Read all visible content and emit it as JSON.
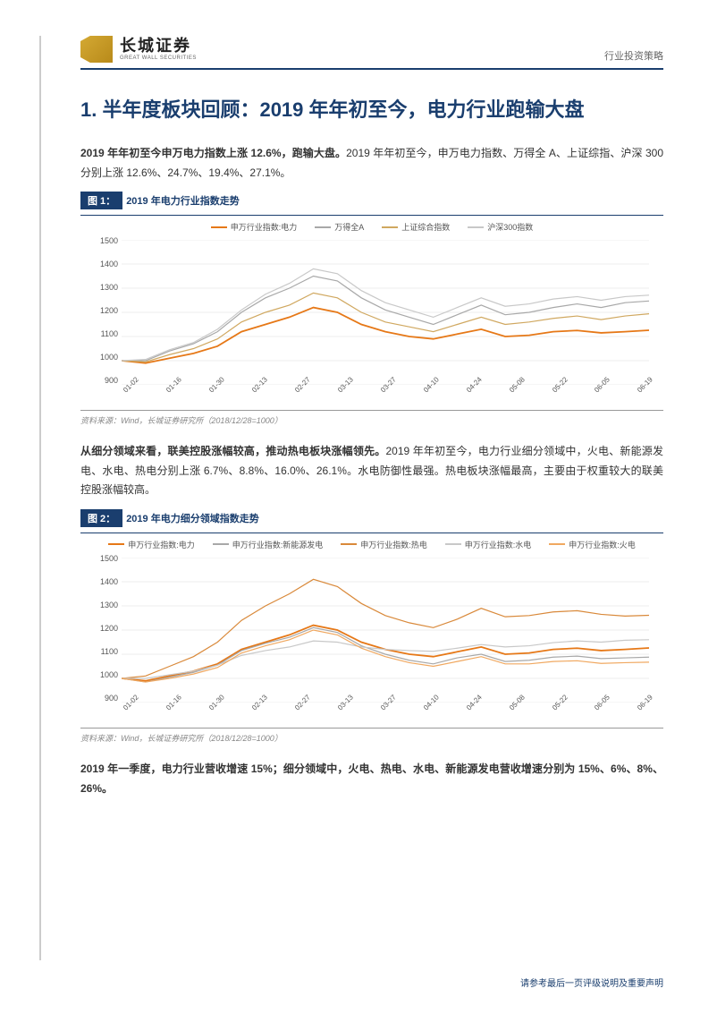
{
  "header": {
    "logo_cn": "长城证券",
    "logo_en": "GREAT WALL SECURITIES",
    "right_text": "行业投资策略"
  },
  "title": "1. 半年度板块回顾：2019 年年初至今，电力行业跑输大盘",
  "para1_lead": "2019 年年初至今申万电力指数上涨 12.6%，跑输大盘。",
  "para1_rest": "2019 年年初至今，申万电力指数、万得全 A、上证综指、沪深 300 分别上涨 12.6%、24.7%、19.4%、27.1%。",
  "fig1": {
    "label": "图 1：",
    "title": "2019 年电力行业指数走势",
    "legend": [
      {
        "name": "申万行业指数:电力",
        "color": "#e67817"
      },
      {
        "name": "万得全A",
        "color": "#a8a8a8"
      },
      {
        "name": "上证综合指数",
        "color": "#d0a860"
      },
      {
        "name": "沪深300指数",
        "color": "#c8c8c8"
      }
    ],
    "ylim": [
      900,
      1500
    ],
    "yticks": [
      900,
      1000,
      1100,
      1200,
      1300,
      1400,
      1500
    ],
    "xticks": [
      "01-02",
      "01-16",
      "01-30",
      "02-13",
      "02-27",
      "03-13",
      "03-27",
      "04-10",
      "04-24",
      "05-08",
      "05-22",
      "06-05",
      "06-19"
    ],
    "grid_color": "#dddddd",
    "background_color": "#ffffff",
    "series": {
      "power": {
        "color": "#e67817",
        "width": 1.8,
        "values": [
          1000,
          990,
          1010,
          1030,
          1060,
          1120,
          1150,
          1180,
          1220,
          1200,
          1150,
          1120,
          1100,
          1090,
          1110,
          1130,
          1100,
          1105,
          1120,
          1125,
          1115,
          1120,
          1126
        ]
      },
      "wanda": {
        "color": "#a8a8a8",
        "width": 1.2,
        "values": [
          1000,
          1000,
          1040,
          1070,
          1120,
          1200,
          1260,
          1300,
          1350,
          1330,
          1260,
          1210,
          1180,
          1150,
          1190,
          1230,
          1190,
          1200,
          1220,
          1235,
          1220,
          1240,
          1247
        ]
      },
      "sse": {
        "color": "#d0a860",
        "width": 1.2,
        "values": [
          1000,
          995,
          1025,
          1050,
          1090,
          1160,
          1200,
          1230,
          1280,
          1260,
          1200,
          1160,
          1140,
          1120,
          1150,
          1180,
          1150,
          1160,
          1175,
          1185,
          1170,
          1185,
          1194
        ]
      },
      "csi300": {
        "color": "#c8c8c8",
        "width": 1.2,
        "values": [
          1000,
          1005,
          1045,
          1075,
          1130,
          1210,
          1275,
          1320,
          1380,
          1360,
          1290,
          1240,
          1210,
          1180,
          1220,
          1260,
          1225,
          1235,
          1255,
          1265,
          1250,
          1265,
          1271
        ]
      }
    },
    "source": "资料来源：Wind，长城证券研究所（2018/12/28=1000）"
  },
  "para2_lead": "从细分领域来看，联美控股涨幅较高，推动热电板块涨幅领先。",
  "para2_rest": "2019 年年初至今，电力行业细分领域中，火电、新能源发电、水电、热电分别上涨 6.7%、8.8%、16.0%、26.1%。水电防御性最强。热电板块涨幅最高，主要由于权重较大的联美控股涨幅较高。",
  "fig2": {
    "label": "图 2：",
    "title": "2019 年电力细分领域指数走势",
    "legend": [
      {
        "name": "申万行业指数:电力",
        "color": "#e67817"
      },
      {
        "name": "申万行业指数:新能源发电",
        "color": "#a8a8a8"
      },
      {
        "name": "申万行业指数:热电",
        "color": "#d9893a"
      },
      {
        "name": "申万行业指数:水电",
        "color": "#c8c8c8"
      },
      {
        "name": "申万行业指数:火电",
        "color": "#f0a860"
      }
    ],
    "ylim": [
      900,
      1500
    ],
    "yticks": [
      900,
      1000,
      1100,
      1200,
      1300,
      1400,
      1500
    ],
    "xticks": [
      "01-02",
      "01-16",
      "01-30",
      "02-13",
      "02-27",
      "03-13",
      "03-27",
      "04-10",
      "04-24",
      "05-08",
      "05-22",
      "06-05",
      "06-19"
    ],
    "grid_color": "#dddddd",
    "background_color": "#ffffff",
    "series": {
      "power": {
        "color": "#e67817",
        "width": 1.8,
        "values": [
          1000,
          990,
          1010,
          1030,
          1060,
          1120,
          1150,
          1180,
          1220,
          1200,
          1150,
          1120,
          1100,
          1090,
          1110,
          1130,
          1100,
          1105,
          1120,
          1125,
          1115,
          1120,
          1126
        ]
      },
      "newenergy": {
        "color": "#a8a8a8",
        "width": 1.2,
        "values": [
          1000,
          985,
          1005,
          1025,
          1055,
          1115,
          1145,
          1170,
          1210,
          1190,
          1135,
          1100,
          1075,
          1060,
          1085,
          1100,
          1070,
          1075,
          1088,
          1092,
          1082,
          1085,
          1088
        ]
      },
      "thermal": {
        "color": "#d9893a",
        "width": 1.2,
        "values": [
          1000,
          1010,
          1050,
          1090,
          1150,
          1240,
          1300,
          1350,
          1410,
          1380,
          1310,
          1260,
          1230,
          1210,
          1245,
          1290,
          1255,
          1260,
          1275,
          1280,
          1265,
          1258,
          1261
        ]
      },
      "hydro": {
        "color": "#c8c8c8",
        "width": 1.2,
        "values": [
          1000,
          1000,
          1015,
          1030,
          1055,
          1095,
          1115,
          1130,
          1155,
          1150,
          1130,
          1120,
          1115,
          1112,
          1125,
          1140,
          1130,
          1135,
          1148,
          1155,
          1150,
          1158,
          1160
        ]
      },
      "fire": {
        "color": "#f0a860",
        "width": 1.2,
        "values": [
          1000,
          985,
          1000,
          1018,
          1045,
          1105,
          1135,
          1160,
          1200,
          1180,
          1125,
          1090,
          1065,
          1050,
          1070,
          1090,
          1060,
          1060,
          1070,
          1073,
          1062,
          1065,
          1067
        ]
      }
    },
    "source": "资料来源：Wind，长城证券研究所（2018/12/28=1000）"
  },
  "para3": "2019 年一季度，电力行业营收增速 15%；细分领域中，火电、热电、水电、新能源发电营收增速分别为 15%、6%、8%、26%。",
  "footer": "请参考最后一页评级说明及重要声明"
}
